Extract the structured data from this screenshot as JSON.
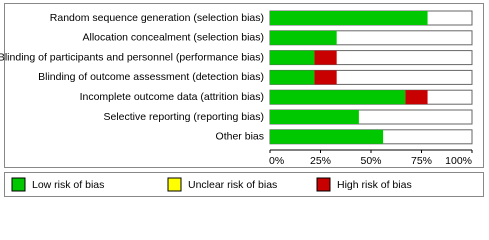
{
  "chart_data": {
    "type": "stacked-bar-horizontal",
    "categories": [
      "Random sequence generation (selection bias)",
      "Allocation concealment (selection bias)",
      "Blinding of participants and personnel (performance bias)",
      "Blinding of outcome assessment (detection bias)",
      "Incomplete outcome data (attrition bias)",
      "Selective reporting (reporting bias)",
      "Other bias"
    ],
    "series": [
      {
        "name": "Low risk of bias",
        "color": "#00c800",
        "values": [
          78,
          33,
          22,
          22,
          67,
          44,
          56
        ]
      },
      {
        "name": "Unclear risk of bias",
        "color": "#ffff00",
        "values": [
          0,
          0,
          0,
          0,
          0,
          0,
          0
        ]
      },
      {
        "name": "High risk of bias",
        "color": "#c80000",
        "values": [
          0,
          0,
          11,
          11,
          11,
          0,
          0
        ]
      }
    ],
    "xlim": [
      0,
      100
    ],
    "xticks": [
      {
        "value": 0,
        "label": "0%"
      },
      {
        "value": 25,
        "label": "25%"
      },
      {
        "value": 50,
        "label": "50%"
      },
      {
        "value": 75,
        "label": "75%"
      },
      {
        "value": 100,
        "label": "100%"
      }
    ]
  }
}
